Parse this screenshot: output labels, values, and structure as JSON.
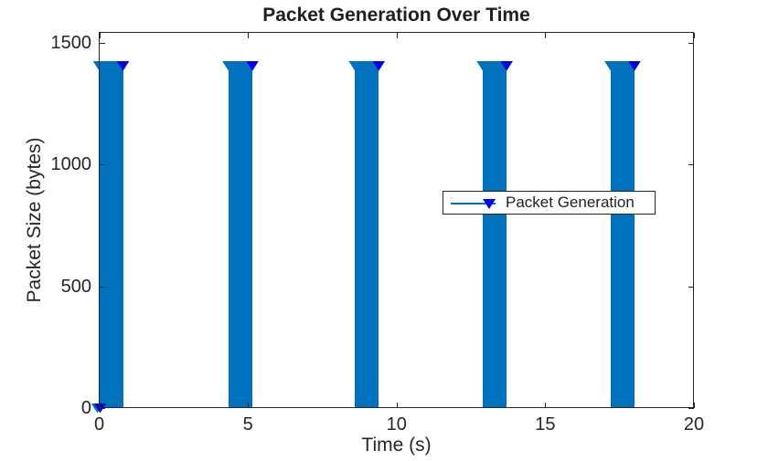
{
  "figure": {
    "background": "#ffffff"
  },
  "chart_data": {
    "type": "stem",
    "title": "Packet Generation Over Time",
    "xlabel": "Time (s)",
    "ylabel": "Packet Size (bytes)",
    "xlim": [
      0,
      20
    ],
    "ylim": [
      0,
      1545
    ],
    "x_ticks": [
      0,
      5,
      10,
      15,
      20
    ],
    "y_ticks": [
      0,
      500,
      1000,
      1500
    ],
    "grid": false,
    "box": true,
    "marker": "triangle-down",
    "packet_size_bytes": 1400,
    "bursts": [
      {
        "start": 0.0,
        "end": 0.8
      },
      {
        "start": 4.35,
        "end": 5.15
      },
      {
        "start": 8.6,
        "end": 9.4
      },
      {
        "start": 12.9,
        "end": 13.7
      },
      {
        "start": 17.2,
        "end": 18.0
      }
    ],
    "origin_point": {
      "t": 0,
      "value": 0
    },
    "legend": {
      "label": "Packet Generation",
      "position": "right-center"
    },
    "colors": {
      "stem": "#0072BD",
      "marker_face": "#0000F0",
      "axis": "#262626",
      "text": "#262626"
    }
  }
}
